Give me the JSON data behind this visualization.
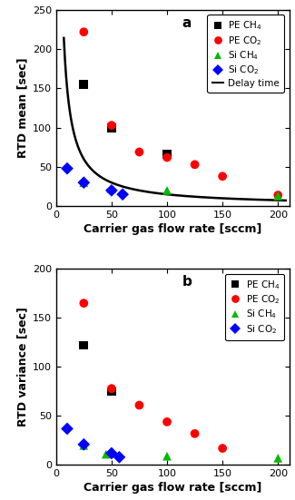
{
  "panel_a": {
    "PE_CH4": {
      "x": [
        25,
        50,
        100
      ],
      "y": [
        155,
        100,
        66
      ]
    },
    "PE_CO2": {
      "x": [
        25,
        50,
        75,
        100,
        125,
        150,
        200
      ],
      "y": [
        222,
        103,
        69,
        62,
        53,
        38,
        14
      ]
    },
    "Si_CH4": {
      "x": [
        25,
        50,
        100,
        200
      ],
      "y": [
        30,
        22,
        20,
        13
      ]
    },
    "Si_CO2": {
      "x": [
        10,
        25,
        50,
        60
      ],
      "y": [
        48,
        30,
        20,
        15
      ]
    },
    "delay_k": 1500,
    "ylabel": "RTD mean [sec]",
    "ylim": [
      0,
      250
    ],
    "yticks": [
      0,
      50,
      100,
      150,
      200,
      250
    ],
    "label": "a"
  },
  "panel_b": {
    "PE_CH4": {
      "x": [
        25,
        50
      ],
      "y": [
        122,
        75
      ]
    },
    "PE_CO2": {
      "x": [
        25,
        50,
        75,
        100,
        125,
        150
      ],
      "y": [
        165,
        78,
        61,
        44,
        32,
        17
      ]
    },
    "Si_CH4": {
      "x": [
        25,
        45,
        100,
        200
      ],
      "y": [
        20,
        11,
        9,
        7
      ]
    },
    "Si_CO2": {
      "x": [
        10,
        25,
        50,
        57
      ],
      "y": [
        37,
        21,
        12,
        8
      ]
    },
    "ylabel": "RTD variance [sec]",
    "ylim": [
      0,
      200
    ],
    "yticks": [
      0,
      50,
      100,
      150,
      200
    ],
    "label": "b"
  },
  "xlabel": "Carrier gas flow rate [sccm]",
  "xlim": [
    0,
    210
  ],
  "xticks": [
    0,
    50,
    100,
    150,
    200
  ],
  "colors": {
    "PE_CH4": "#000000",
    "PE_CO2": "#ff0000",
    "Si_CH4": "#00bb00",
    "Si_CO2": "#0000ff"
  },
  "legend_labels": {
    "PE_CH4": "PE CH$_4$",
    "PE_CO2": "PE CO$_2$",
    "Si_CH4": "Si CH$_4$",
    "Si_CO2": "Si CO$_2$"
  },
  "bg_color": "#ffffff",
  "marker_size": 7,
  "label_fontsize": 9,
  "tick_fontsize": 8,
  "legend_fontsize": 7.5
}
